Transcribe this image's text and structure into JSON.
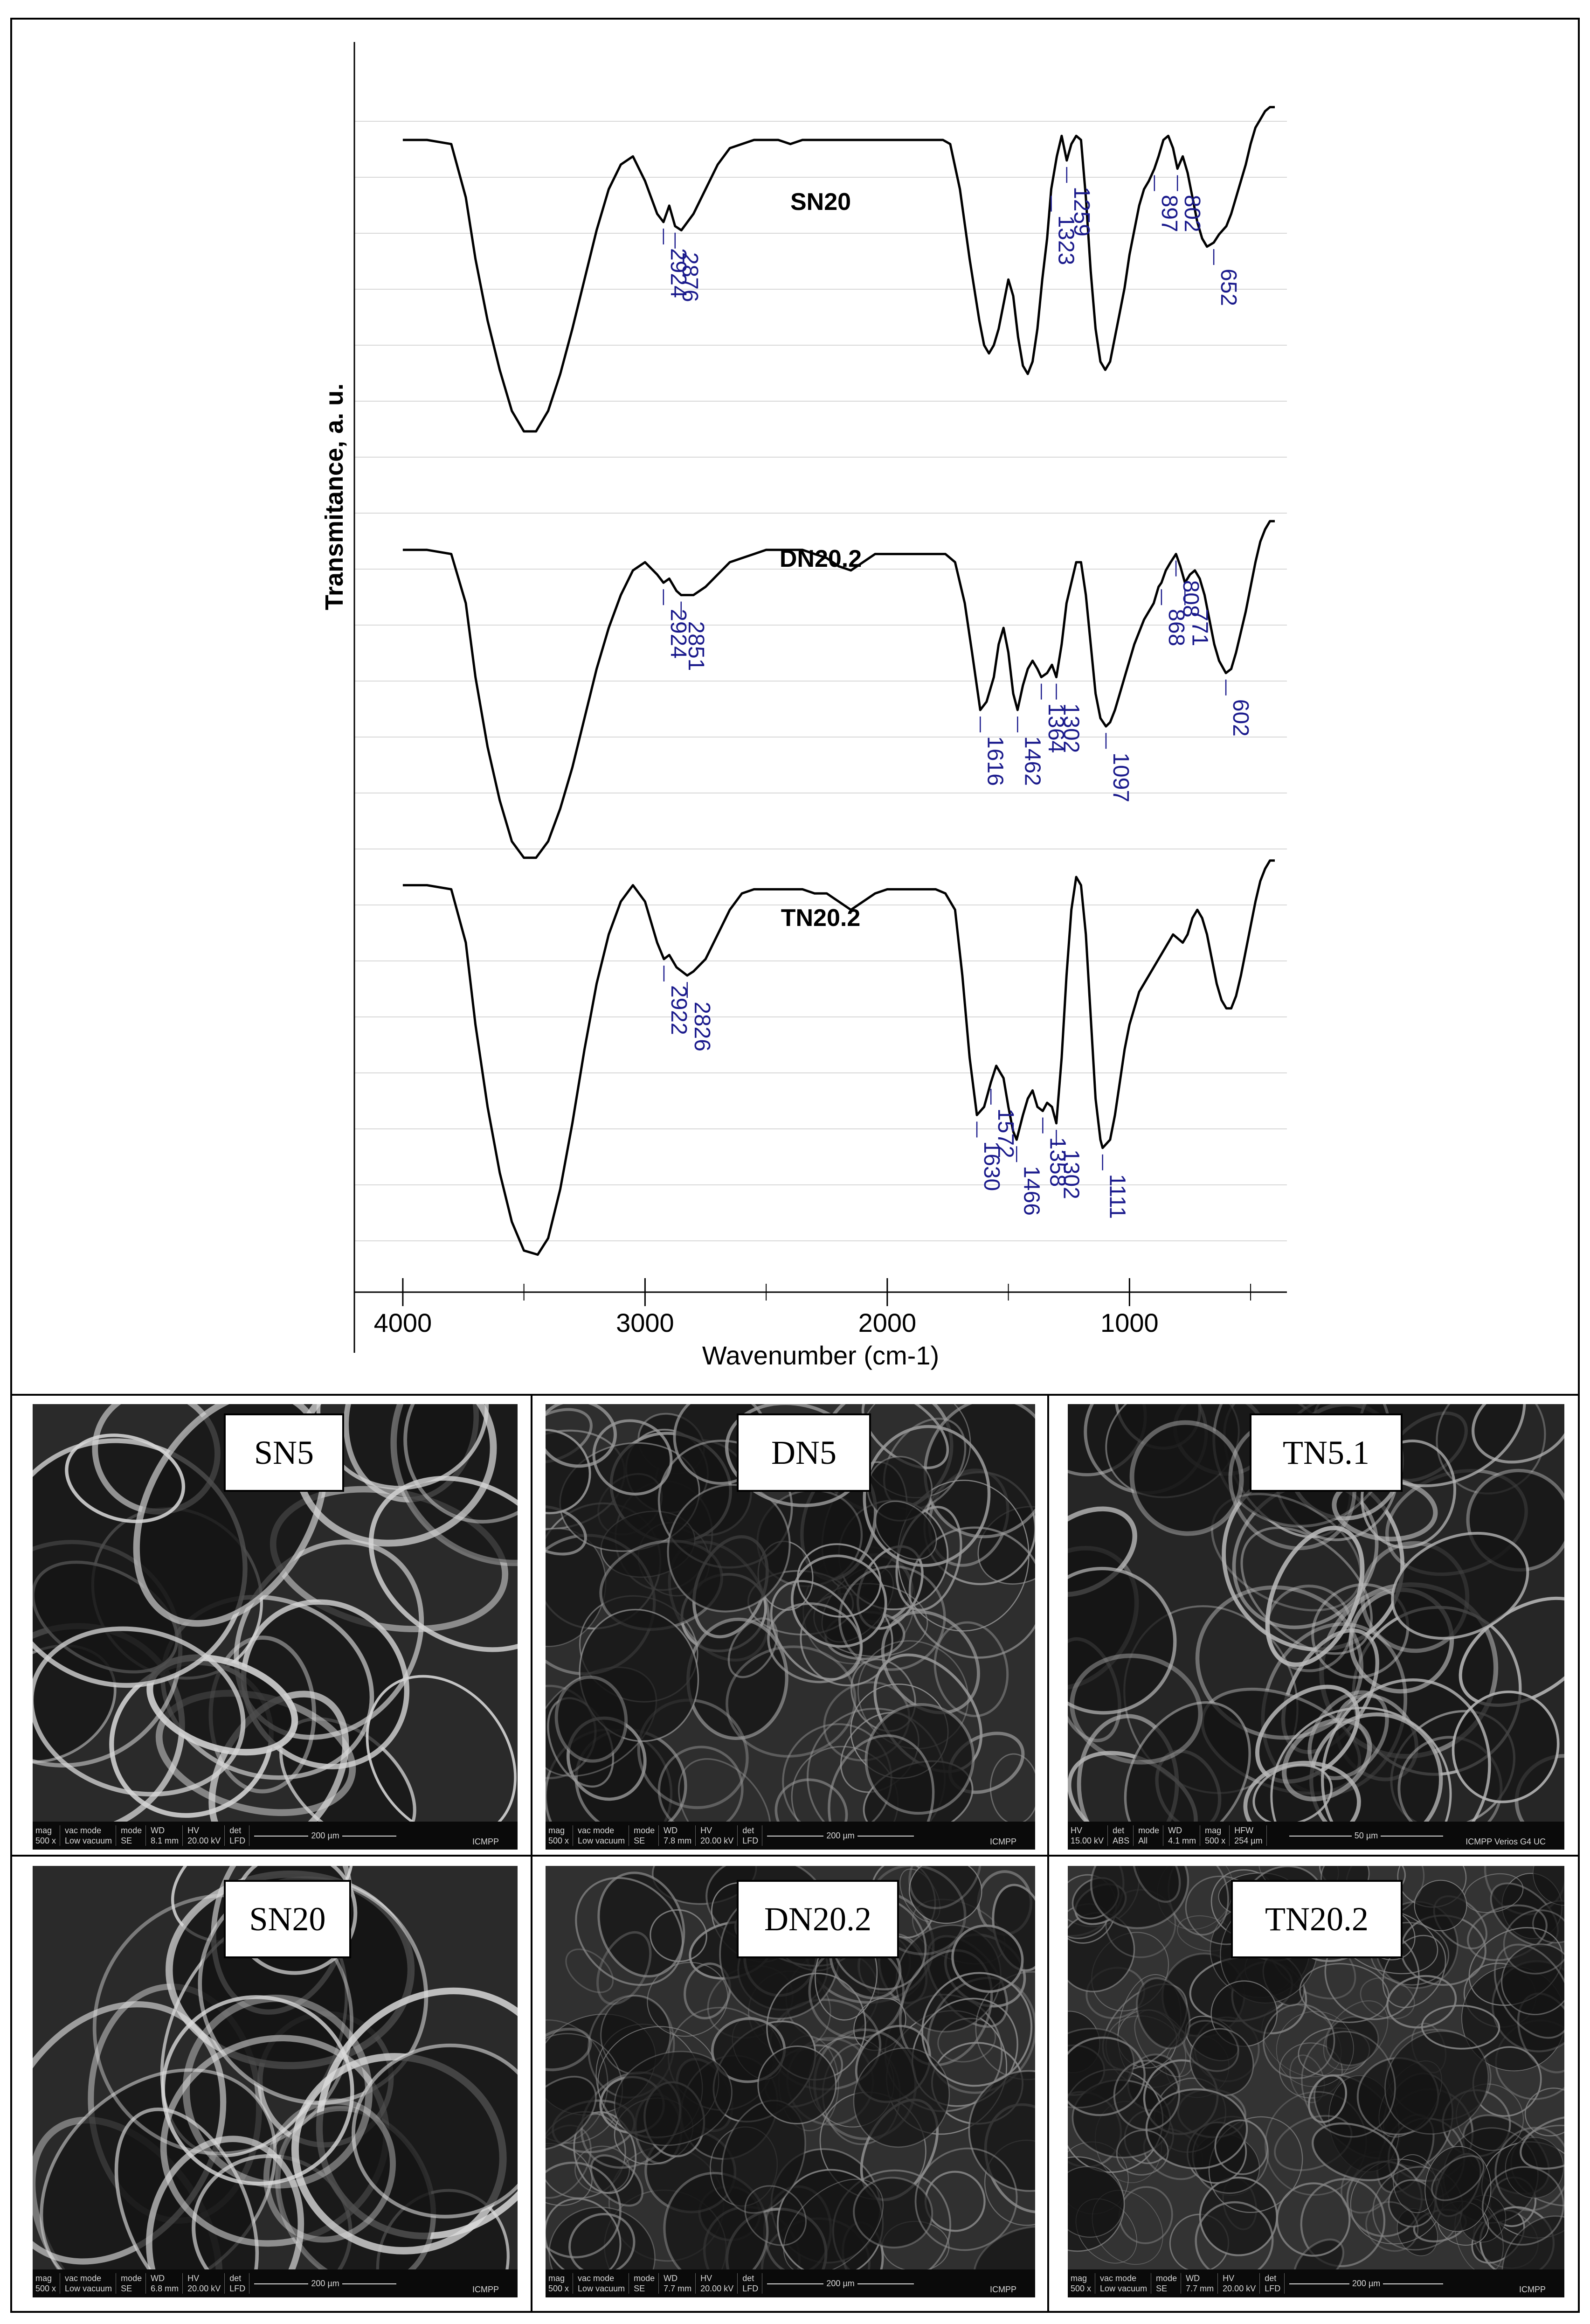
{
  "chart_data": {
    "type": "line",
    "title": "",
    "xlabel": "Wavenumber (cm-1)",
    "ylabel": "Transmitance, a. u.",
    "xlim": [
      4200,
      350
    ],
    "x_ticks": [
      4000,
      3000,
      2000,
      1000
    ],
    "x_tick_labels": [
      "4000",
      "3000",
      "2000",
      "1000"
    ],
    "grid": "horizontal",
    "series": [
      {
        "name": "SN20",
        "peaks": [
          2924,
          2876,
          1259,
          1323,
          897,
          802,
          652
        ],
        "x": [
          4000,
          3900,
          3800,
          3740,
          3700,
          3650,
          3600,
          3550,
          3500,
          3450,
          3400,
          3350,
          3300,
          3250,
          3200,
          3150,
          3100,
          3050,
          3000,
          2950,
          2924,
          2900,
          2876,
          2850,
          2800,
          2750,
          2700,
          2650,
          2600,
          2550,
          2500,
          2450,
          2400,
          2350,
          2300,
          2250,
          2200,
          2150,
          2100,
          2050,
          2000,
          1950,
          1900,
          1850,
          1800,
          1770,
          1740,
          1700,
          1660,
          1620,
          1600,
          1580,
          1560,
          1540,
          1520,
          1500,
          1480,
          1460,
          1440,
          1420,
          1400,
          1380,
          1360,
          1340,
          1323,
          1300,
          1280,
          1259,
          1240,
          1220,
          1200,
          1180,
          1160,
          1140,
          1120,
          1100,
          1080,
          1060,
          1040,
          1020,
          1000,
          980,
          960,
          940,
          920,
          897,
          880,
          860,
          840,
          820,
          802,
          780,
          760,
          740,
          720,
          700,
          680,
          652,
          630,
          600,
          580,
          560,
          540,
          520,
          500,
          480,
          460,
          440,
          420,
          400
        ],
        "y": [
          0.54,
          0.54,
          0.53,
          0.4,
          0.25,
          0.1,
          -0.02,
          -0.12,
          -0.17,
          -0.17,
          -0.12,
          -0.03,
          0.08,
          0.2,
          0.32,
          0.42,
          0.48,
          0.5,
          0.44,
          0.36,
          0.34,
          0.38,
          0.33,
          0.32,
          0.36,
          0.42,
          0.48,
          0.52,
          0.53,
          0.54,
          0.54,
          0.54,
          0.53,
          0.54,
          0.54,
          0.54,
          0.54,
          0.54,
          0.54,
          0.54,
          0.54,
          0.54,
          0.54,
          0.54,
          0.54,
          0.54,
          0.53,
          0.42,
          0.25,
          0.1,
          0.04,
          0.02,
          0.04,
          0.08,
          0.14,
          0.2,
          0.16,
          0.06,
          -0.01,
          -0.03,
          0.0,
          0.08,
          0.2,
          0.3,
          0.42,
          0.5,
          0.55,
          0.49,
          0.53,
          0.55,
          0.54,
          0.4,
          0.22,
          0.08,
          0.0,
          -0.02,
          0.0,
          0.06,
          0.12,
          0.18,
          0.26,
          0.32,
          0.38,
          0.42,
          0.44,
          0.47,
          0.5,
          0.54,
          0.55,
          0.52,
          0.47,
          0.5,
          0.46,
          0.4,
          0.34,
          0.3,
          0.28,
          0.29,
          0.31,
          0.33,
          0.36,
          0.4,
          0.44,
          0.48,
          0.53,
          0.57,
          0.59,
          0.61,
          0.62,
          0.62
        ]
      },
      {
        "name": "DN20.2",
        "peaks": [
          2924,
          2851,
          1616,
          1462,
          1364,
          1302,
          1097,
          868,
          808,
          771,
          602
        ],
        "x": [
          4000,
          3900,
          3800,
          3740,
          3700,
          3650,
          3600,
          3550,
          3500,
          3450,
          3400,
          3350,
          3300,
          3250,
          3200,
          3150,
          3100,
          3050,
          3000,
          2950,
          2924,
          2900,
          2870,
          2851,
          2800,
          2750,
          2700,
          2650,
          2600,
          2550,
          2500,
          2450,
          2400,
          2350,
          2300,
          2250,
          2200,
          2150,
          2100,
          2050,
          2000,
          1950,
          1900,
          1850,
          1800,
          1760,
          1720,
          1680,
          1650,
          1616,
          1590,
          1560,
          1540,
          1520,
          1500,
          1480,
          1462,
          1440,
          1420,
          1400,
          1380,
          1364,
          1340,
          1320,
          1302,
          1280,
          1260,
          1240,
          1220,
          1200,
          1180,
          1160,
          1140,
          1120,
          1097,
          1080,
          1060,
          1040,
          1020,
          1000,
          980,
          960,
          940,
          920,
          900,
          880,
          868,
          850,
          830,
          808,
          790,
          771,
          750,
          730,
          710,
          690,
          670,
          650,
          630,
          602,
          580,
          560,
          540,
          520,
          500,
          480,
          460,
          440,
          420,
          400
        ],
        "y": [
          0.53,
          0.53,
          0.52,
          0.4,
          0.22,
          0.05,
          -0.08,
          -0.18,
          -0.22,
          -0.22,
          -0.18,
          -0.1,
          0.0,
          0.12,
          0.24,
          0.34,
          0.42,
          0.48,
          0.5,
          0.47,
          0.45,
          0.46,
          0.43,
          0.42,
          0.42,
          0.44,
          0.47,
          0.5,
          0.51,
          0.52,
          0.53,
          0.53,
          0.53,
          0.53,
          0.52,
          0.51,
          0.49,
          0.48,
          0.5,
          0.52,
          0.52,
          0.52,
          0.52,
          0.52,
          0.52,
          0.52,
          0.5,
          0.4,
          0.28,
          0.14,
          0.16,
          0.22,
          0.3,
          0.34,
          0.28,
          0.18,
          0.14,
          0.2,
          0.24,
          0.26,
          0.24,
          0.22,
          0.23,
          0.25,
          0.22,
          0.3,
          0.4,
          0.45,
          0.5,
          0.5,
          0.42,
          0.3,
          0.18,
          0.12,
          0.1,
          0.11,
          0.14,
          0.18,
          0.22,
          0.26,
          0.3,
          0.33,
          0.36,
          0.38,
          0.4,
          0.44,
          0.45,
          0.48,
          0.5,
          0.52,
          0.49,
          0.45,
          0.47,
          0.48,
          0.46,
          0.42,
          0.36,
          0.3,
          0.26,
          0.23,
          0.24,
          0.28,
          0.33,
          0.38,
          0.44,
          0.5,
          0.55,
          0.58,
          0.6,
          0.6
        ]
      },
      {
        "name": "TN20.2",
        "peaks": [
          2922,
          2826,
          1630,
          1572,
          1466,
          1358,
          1302,
          1111
        ],
        "x": [
          4000,
          3900,
          3800,
          3740,
          3700,
          3650,
          3600,
          3550,
          3500,
          3443,
          3400,
          3350,
          3300,
          3250,
          3200,
          3150,
          3100,
          3050,
          3000,
          2950,
          2922,
          2900,
          2870,
          2826,
          2800,
          2750,
          2700,
          2650,
          2600,
          2550,
          2500,
          2450,
          2400,
          2350,
          2300,
          2250,
          2200,
          2150,
          2100,
          2050,
          2000,
          1950,
          1900,
          1850,
          1800,
          1760,
          1720,
          1690,
          1660,
          1630,
          1600,
          1572,
          1550,
          1520,
          1500,
          1480,
          1466,
          1440,
          1420,
          1400,
          1380,
          1358,
          1340,
          1320,
          1302,
          1280,
          1260,
          1240,
          1220,
          1200,
          1180,
          1160,
          1140,
          1120,
          1111,
          1080,
          1060,
          1040,
          1020,
          1000,
          980,
          960,
          940,
          920,
          900,
          880,
          860,
          840,
          820,
          800,
          780,
          760,
          740,
          720,
          700,
          680,
          660,
          640,
          620,
          600,
          580,
          560,
          540,
          520,
          500,
          480,
          460,
          440,
          420,
          400
        ],
        "y": [
          0.52,
          0.52,
          0.51,
          0.38,
          0.18,
          -0.02,
          -0.18,
          -0.3,
          -0.37,
          -0.38,
          -0.34,
          -0.22,
          -0.06,
          0.12,
          0.28,
          0.4,
          0.48,
          0.52,
          0.48,
          0.38,
          0.34,
          0.35,
          0.32,
          0.3,
          0.31,
          0.34,
          0.4,
          0.46,
          0.5,
          0.51,
          0.51,
          0.51,
          0.51,
          0.51,
          0.5,
          0.5,
          0.48,
          0.46,
          0.48,
          0.5,
          0.51,
          0.51,
          0.51,
          0.51,
          0.51,
          0.5,
          0.46,
          0.3,
          0.1,
          -0.04,
          -0.02,
          0.04,
          0.08,
          0.05,
          -0.02,
          -0.08,
          -0.1,
          -0.04,
          0.0,
          0.02,
          -0.02,
          -0.03,
          -0.01,
          -0.02,
          -0.06,
          0.1,
          0.3,
          0.46,
          0.54,
          0.52,
          0.4,
          0.2,
          0.0,
          -0.1,
          -0.12,
          -0.1,
          -0.04,
          0.04,
          0.12,
          0.18,
          0.22,
          0.26,
          0.28,
          0.3,
          0.32,
          0.34,
          0.36,
          0.38,
          0.4,
          0.39,
          0.38,
          0.4,
          0.44,
          0.46,
          0.44,
          0.4,
          0.34,
          0.28,
          0.24,
          0.22,
          0.22,
          0.25,
          0.3,
          0.36,
          0.42,
          0.48,
          0.53,
          0.56,
          0.58,
          0.58
        ]
      }
    ]
  },
  "sem_images": [
    {
      "label": "SN5",
      "databar": [
        "mag",
        "500 x",
        "vac mode",
        "Low vacuum",
        "mode",
        "SE",
        "WD",
        "8.1 mm",
        "HV",
        "20.00 kV",
        "det",
        "LFD"
      ],
      "scale": "200 µm",
      "instrument": "ICMPP"
    },
    {
      "label": "DN5",
      "databar": [
        "mag",
        "500 x",
        "vac mode",
        "Low vacuum",
        "mode",
        "SE",
        "WD",
        "7.8 mm",
        "HV",
        "20.00 kV",
        "det",
        "LFD"
      ],
      "scale": "200 µm",
      "instrument": "ICMPP"
    },
    {
      "label": "TN5.1",
      "databar": [
        "HV",
        "15.00 kV",
        "det",
        "ABS",
        "mode",
        "All",
        "WD",
        "4.1 mm",
        "mag",
        "500 x",
        "HFW",
        "254 µm"
      ],
      "scale": "50 µm",
      "instrument": "ICMPP Verios G4 UC"
    },
    {
      "label": "SN20",
      "databar": [
        "mag",
        "500 x",
        "vac mode",
        "Low vacuum",
        "mode",
        "SE",
        "WD",
        "6.8 mm",
        "HV",
        "20.00 kV",
        "det",
        "LFD"
      ],
      "scale": "200 µm",
      "instrument": "ICMPP"
    },
    {
      "label": "DN20.2",
      "databar": [
        "mag",
        "500 x",
        "vac mode",
        "Low vacuum",
        "mode",
        "SE",
        "WD",
        "7.7 mm",
        "HV",
        "20.00 kV",
        "det",
        "LFD"
      ],
      "scale": "200 µm",
      "instrument": "ICMPP"
    },
    {
      "label": "TN20.2",
      "databar": [
        "mag",
        "500 x",
        "vac mode",
        "Low vacuum",
        "mode",
        "SE",
        "WD",
        "7.7 mm",
        "HV",
        "20.00 kV",
        "det",
        "LFD"
      ],
      "scale": "200 µm",
      "instrument": "ICMPP"
    }
  ],
  "colors": {
    "curve": "#000000",
    "peak_label": "#1a1a8c",
    "grid": "#d8d8d8"
  }
}
